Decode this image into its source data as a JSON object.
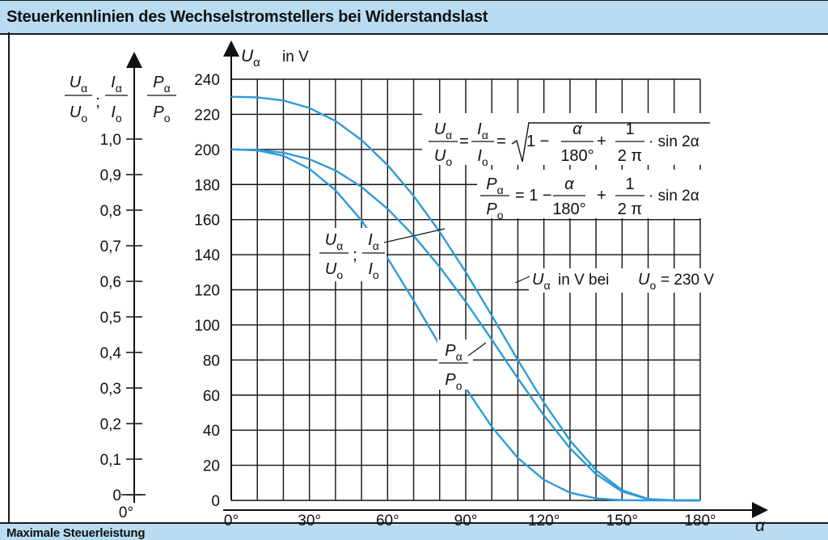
{
  "header": {
    "title": "Steuerkennlinien des Wechselstromstellers bei Widerstandslast"
  },
  "footer": {
    "title": "Maximale Steuerleistung"
  },
  "chart_data": {
    "type": "line",
    "title": "Steuerkennlinien des Wechselstromstellers bei Widerstandslast",
    "x_axis": {
      "symbol": "α",
      "range": [
        0,
        180
      ],
      "ticks": [
        0,
        30,
        60,
        90,
        120,
        150,
        180
      ],
      "tick_labels": [
        "0°",
        "30°",
        "60°",
        "90°",
        "120°",
        "150°",
        "180°"
      ],
      "grid_step": 10
    },
    "y_axis_voltage": {
      "label_symbol": "U",
      "label_sub": "α",
      "label_unit": "in V",
      "range": [
        0,
        240
      ],
      "ticks": [
        0,
        20,
        40,
        60,
        80,
        100,
        120,
        140,
        160,
        180,
        200,
        220,
        240
      ],
      "tick_labels": [
        "0",
        "20",
        "40",
        "60",
        "80",
        "100",
        "120",
        "140",
        "160",
        "180",
        "200",
        "220",
        "240"
      ]
    },
    "y_axis_ratio": {
      "range": [
        0,
        1.0
      ],
      "ticks": [
        0,
        0.1,
        0.2,
        0.3,
        0.4,
        0.5,
        0.6,
        0.7,
        0.8,
        0.9,
        1.0
      ],
      "tick_labels": [
        "0",
        "0,1",
        "0,2",
        "0,3",
        "0,4",
        "0,5",
        "0,6",
        "0,7",
        "0,8",
        "0,9",
        "1,0"
      ],
      "zero_label": "0°",
      "header_left": {
        "num": "U",
        "num_sub": "α",
        "sep": ";",
        "num2": "I",
        "num2_sub": "α",
        "den": "U",
        "den_sub": "o",
        "den2": "I",
        "den2_sub": "o"
      },
      "header_right": {
        "num": "P",
        "num_sub": "α",
        "den": "P",
        "den_sub": "o"
      }
    },
    "series": [
      {
        "name": "U_alpha_V",
        "color": "#2e9ad8",
        "x": [
          0,
          10,
          20,
          30,
          40,
          50,
          60,
          70,
          80,
          90,
          100,
          110,
          120,
          130,
          140,
          150,
          160,
          170,
          180
        ],
        "y": [
          230,
          229.7,
          227.9,
          223.6,
          216.2,
          205.4,
          191.1,
          173.5,
          153.0,
          130.1,
          105.3,
          80.0,
          55.7,
          34.2,
          17.2,
          5.8,
          0.8,
          0.03,
          0
        ]
      },
      {
        "name": "U_ratio",
        "color": "#2e9ad8",
        "x": [
          0,
          10,
          20,
          30,
          40,
          50,
          60,
          70,
          80,
          90,
          100,
          110,
          120,
          130,
          140,
          150,
          160,
          170,
          180
        ],
        "y": [
          1.0,
          0.9987,
          0.9909,
          0.972,
          0.9401,
          0.893,
          0.8308,
          0.7542,
          0.665,
          0.5657,
          0.4578,
          0.3477,
          0.242,
          0.1486,
          0.0749,
          0.0252,
          0.0033,
          0.0001,
          0
        ]
      },
      {
        "name": "P_ratio",
        "color": "#2e9ad8",
        "x": [
          0,
          10,
          20,
          30,
          40,
          50,
          60,
          70,
          80,
          90,
          100,
          110,
          120,
          130,
          140,
          150,
          160,
          170,
          180
        ],
        "y": [
          1.0,
          0.9974,
          0.9819,
          0.9449,
          0.8838,
          0.7974,
          0.6902,
          0.5688,
          0.4422,
          0.32,
          0.2096,
          0.1209,
          0.0586,
          0.0221,
          0.0056,
          0.0006,
          1e-05,
          0,
          0
        ]
      }
    ],
    "annotations": {
      "formula_u": {
        "lhs1_num": "U",
        "lhs1_num_sub": "α",
        "lhs1_den": "U",
        "lhs1_den_sub": "o",
        "eq": "=",
        "lhs2_num": "I",
        "lhs2_num_sub": "α",
        "lhs2_den": "I",
        "lhs2_den_sub": "o",
        "eq2": "=",
        "one": "1 −",
        "frac1_num": "α",
        "frac1_den": "180°",
        "plus": "+",
        "frac2_num": "1",
        "frac2_den": "2 π",
        "tail": "· sin 2α"
      },
      "formula_p": {
        "lhs_num": "P",
        "lhs_num_sub": "α",
        "lhs_den": "P",
        "lhs_den_sub": "o",
        "eq": "= 1 −",
        "frac1_num": "α",
        "frac1_den": "180°",
        "plus": "+",
        "frac2_num": "1",
        "frac2_den": "2 π",
        "tail": "· sin 2α"
      },
      "label_u_volt": {
        "sym": "U",
        "sub": "α",
        "text": "in V bei",
        "sym2": "U",
        "sub2": "o",
        "value": "= 230 V"
      },
      "label_ratio": {
        "num": "U",
        "num_sub": "α",
        "sep": ";",
        "num2": "I",
        "num2_sub": "α",
        "den": "U",
        "den_sub": "o",
        "den2": "I",
        "den2_sub": "o"
      },
      "label_p": {
        "num": "P",
        "num_sub": "α",
        "den": "P",
        "den_sub": "o"
      }
    },
    "grid": true
  }
}
